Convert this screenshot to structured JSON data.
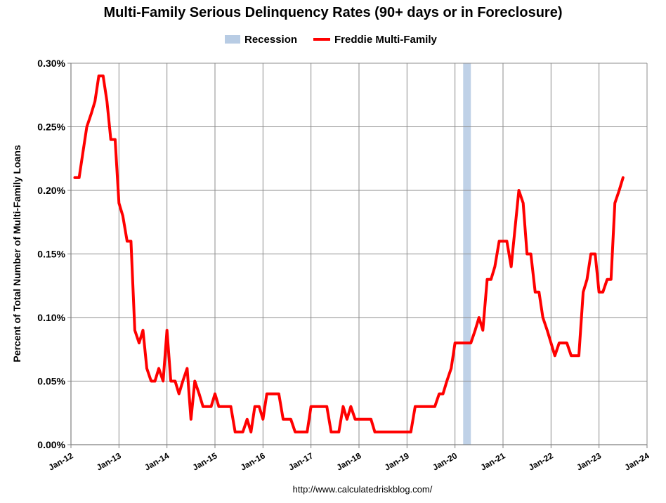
{
  "chart_data": {
    "type": "line",
    "title": "Multi-Family Serious Delinquency Rates (90+ days or in Foreclosure)",
    "xlabel": "",
    "ylabel": "Percent of Total Number of Multi-Family Loans",
    "source": "http://www.calculatedriskblog.com/",
    "legend": {
      "position": "top-center",
      "entries": [
        {
          "name": "Recession",
          "color": "#b8cce4",
          "kind": "band"
        },
        {
          "name": "Freddie Multi-Family",
          "color": "#ff0000",
          "kind": "line"
        }
      ]
    },
    "ylim": [
      0,
      0.3
    ],
    "yticks": [
      0,
      0.05,
      0.1,
      0.15,
      0.2,
      0.25,
      0.3
    ],
    "ytick_labels": [
      "0.00%",
      "0.05%",
      "0.10%",
      "0.15%",
      "0.20%",
      "0.25%",
      "0.30%"
    ],
    "xlim": [
      2012,
      2024
    ],
    "xticks": [
      2012,
      2013,
      2014,
      2015,
      2016,
      2017,
      2018,
      2019,
      2020,
      2021,
      2022,
      2023,
      2024
    ],
    "xtick_labels": [
      "Jan-12",
      "Jan-13",
      "Jan-14",
      "Jan-15",
      "Jan-16",
      "Jan-17",
      "Jan-18",
      "Jan-19",
      "Jan-20",
      "Jan-21",
      "Jan-22",
      "Jan-23",
      "Jan-24"
    ],
    "grid": true,
    "recessions": [
      {
        "start": 2020.17,
        "end": 2020.33
      }
    ],
    "series": [
      {
        "name": "Freddie Multi-Family",
        "color": "#ff0000",
        "points": [
          [
            2012.08,
            0.21
          ],
          [
            2012.17,
            0.21
          ],
          [
            2012.25,
            0.23
          ],
          [
            2012.33,
            0.25
          ],
          [
            2012.42,
            0.26
          ],
          [
            2012.5,
            0.27
          ],
          [
            2012.58,
            0.29
          ],
          [
            2012.67,
            0.29
          ],
          [
            2012.75,
            0.27
          ],
          [
            2012.83,
            0.24
          ],
          [
            2012.92,
            0.24
          ],
          [
            2013.0,
            0.19
          ],
          [
            2013.08,
            0.18
          ],
          [
            2013.17,
            0.16
          ],
          [
            2013.25,
            0.16
          ],
          [
            2013.33,
            0.09
          ],
          [
            2013.42,
            0.08
          ],
          [
            2013.5,
            0.09
          ],
          [
            2013.58,
            0.06
          ],
          [
            2013.67,
            0.05
          ],
          [
            2013.75,
            0.05
          ],
          [
            2013.83,
            0.06
          ],
          [
            2013.92,
            0.05
          ],
          [
            2014.0,
            0.09
          ],
          [
            2014.08,
            0.05
          ],
          [
            2014.17,
            0.05
          ],
          [
            2014.25,
            0.04
          ],
          [
            2014.33,
            0.05
          ],
          [
            2014.42,
            0.06
          ],
          [
            2014.5,
            0.02
          ],
          [
            2014.58,
            0.05
          ],
          [
            2014.67,
            0.04
          ],
          [
            2014.75,
            0.03
          ],
          [
            2014.83,
            0.03
          ],
          [
            2014.92,
            0.03
          ],
          [
            2015.0,
            0.04
          ],
          [
            2015.08,
            0.03
          ],
          [
            2015.17,
            0.03
          ],
          [
            2015.25,
            0.03
          ],
          [
            2015.33,
            0.03
          ],
          [
            2015.42,
            0.01
          ],
          [
            2015.5,
            0.01
          ],
          [
            2015.58,
            0.01
          ],
          [
            2015.67,
            0.02
          ],
          [
            2015.75,
            0.01
          ],
          [
            2015.83,
            0.03
          ],
          [
            2015.92,
            0.03
          ],
          [
            2016.0,
            0.02
          ],
          [
            2016.08,
            0.04
          ],
          [
            2016.17,
            0.04
          ],
          [
            2016.25,
            0.04
          ],
          [
            2016.33,
            0.04
          ],
          [
            2016.42,
            0.02
          ],
          [
            2016.5,
            0.02
          ],
          [
            2016.58,
            0.02
          ],
          [
            2016.67,
            0.01
          ],
          [
            2016.75,
            0.01
          ],
          [
            2016.83,
            0.01
          ],
          [
            2016.92,
            0.01
          ],
          [
            2017.0,
            0.03
          ],
          [
            2017.08,
            0.03
          ],
          [
            2017.17,
            0.03
          ],
          [
            2017.25,
            0.03
          ],
          [
            2017.33,
            0.03
          ],
          [
            2017.42,
            0.01
          ],
          [
            2017.5,
            0.01
          ],
          [
            2017.58,
            0.01
          ],
          [
            2017.67,
            0.03
          ],
          [
            2017.75,
            0.02
          ],
          [
            2017.83,
            0.03
          ],
          [
            2017.92,
            0.02
          ],
          [
            2018.0,
            0.02
          ],
          [
            2018.08,
            0.02
          ],
          [
            2018.17,
            0.02
          ],
          [
            2018.25,
            0.02
          ],
          [
            2018.33,
            0.01
          ],
          [
            2018.42,
            0.01
          ],
          [
            2018.5,
            0.01
          ],
          [
            2018.58,
            0.01
          ],
          [
            2018.67,
            0.01
          ],
          [
            2018.75,
            0.01
          ],
          [
            2018.83,
            0.01
          ],
          [
            2018.92,
            0.01
          ],
          [
            2019.0,
            0.01
          ],
          [
            2019.08,
            0.01
          ],
          [
            2019.17,
            0.03
          ],
          [
            2019.25,
            0.03
          ],
          [
            2019.33,
            0.03
          ],
          [
            2019.42,
            0.03
          ],
          [
            2019.5,
            0.03
          ],
          [
            2019.58,
            0.03
          ],
          [
            2019.67,
            0.04
          ],
          [
            2019.75,
            0.04
          ],
          [
            2019.83,
            0.05
          ],
          [
            2019.92,
            0.06
          ],
          [
            2020.0,
            0.08
          ],
          [
            2020.08,
            0.08
          ],
          [
            2020.17,
            0.08
          ],
          [
            2020.25,
            0.08
          ],
          [
            2020.33,
            0.08
          ],
          [
            2020.42,
            0.09
          ],
          [
            2020.5,
            0.1
          ],
          [
            2020.58,
            0.09
          ],
          [
            2020.67,
            0.13
          ],
          [
            2020.75,
            0.13
          ],
          [
            2020.83,
            0.14
          ],
          [
            2020.92,
            0.16
          ],
          [
            2021.0,
            0.16
          ],
          [
            2021.08,
            0.16
          ],
          [
            2021.17,
            0.14
          ],
          [
            2021.25,
            0.17
          ],
          [
            2021.33,
            0.2
          ],
          [
            2021.42,
            0.19
          ],
          [
            2021.5,
            0.15
          ],
          [
            2021.58,
            0.15
          ],
          [
            2021.67,
            0.12
          ],
          [
            2021.75,
            0.12
          ],
          [
            2021.83,
            0.1
          ],
          [
            2021.92,
            0.09
          ],
          [
            2022.0,
            0.08
          ],
          [
            2022.08,
            0.07
          ],
          [
            2022.17,
            0.08
          ],
          [
            2022.25,
            0.08
          ],
          [
            2022.33,
            0.08
          ],
          [
            2022.42,
            0.07
          ],
          [
            2022.5,
            0.07
          ],
          [
            2022.58,
            0.07
          ],
          [
            2022.67,
            0.12
          ],
          [
            2022.75,
            0.13
          ],
          [
            2022.83,
            0.15
          ],
          [
            2022.92,
            0.15
          ],
          [
            2023.0,
            0.12
          ],
          [
            2023.08,
            0.12
          ],
          [
            2023.17,
            0.13
          ],
          [
            2023.25,
            0.13
          ],
          [
            2023.33,
            0.19
          ],
          [
            2023.42,
            0.2
          ],
          [
            2023.5,
            0.21
          ]
        ]
      }
    ]
  }
}
